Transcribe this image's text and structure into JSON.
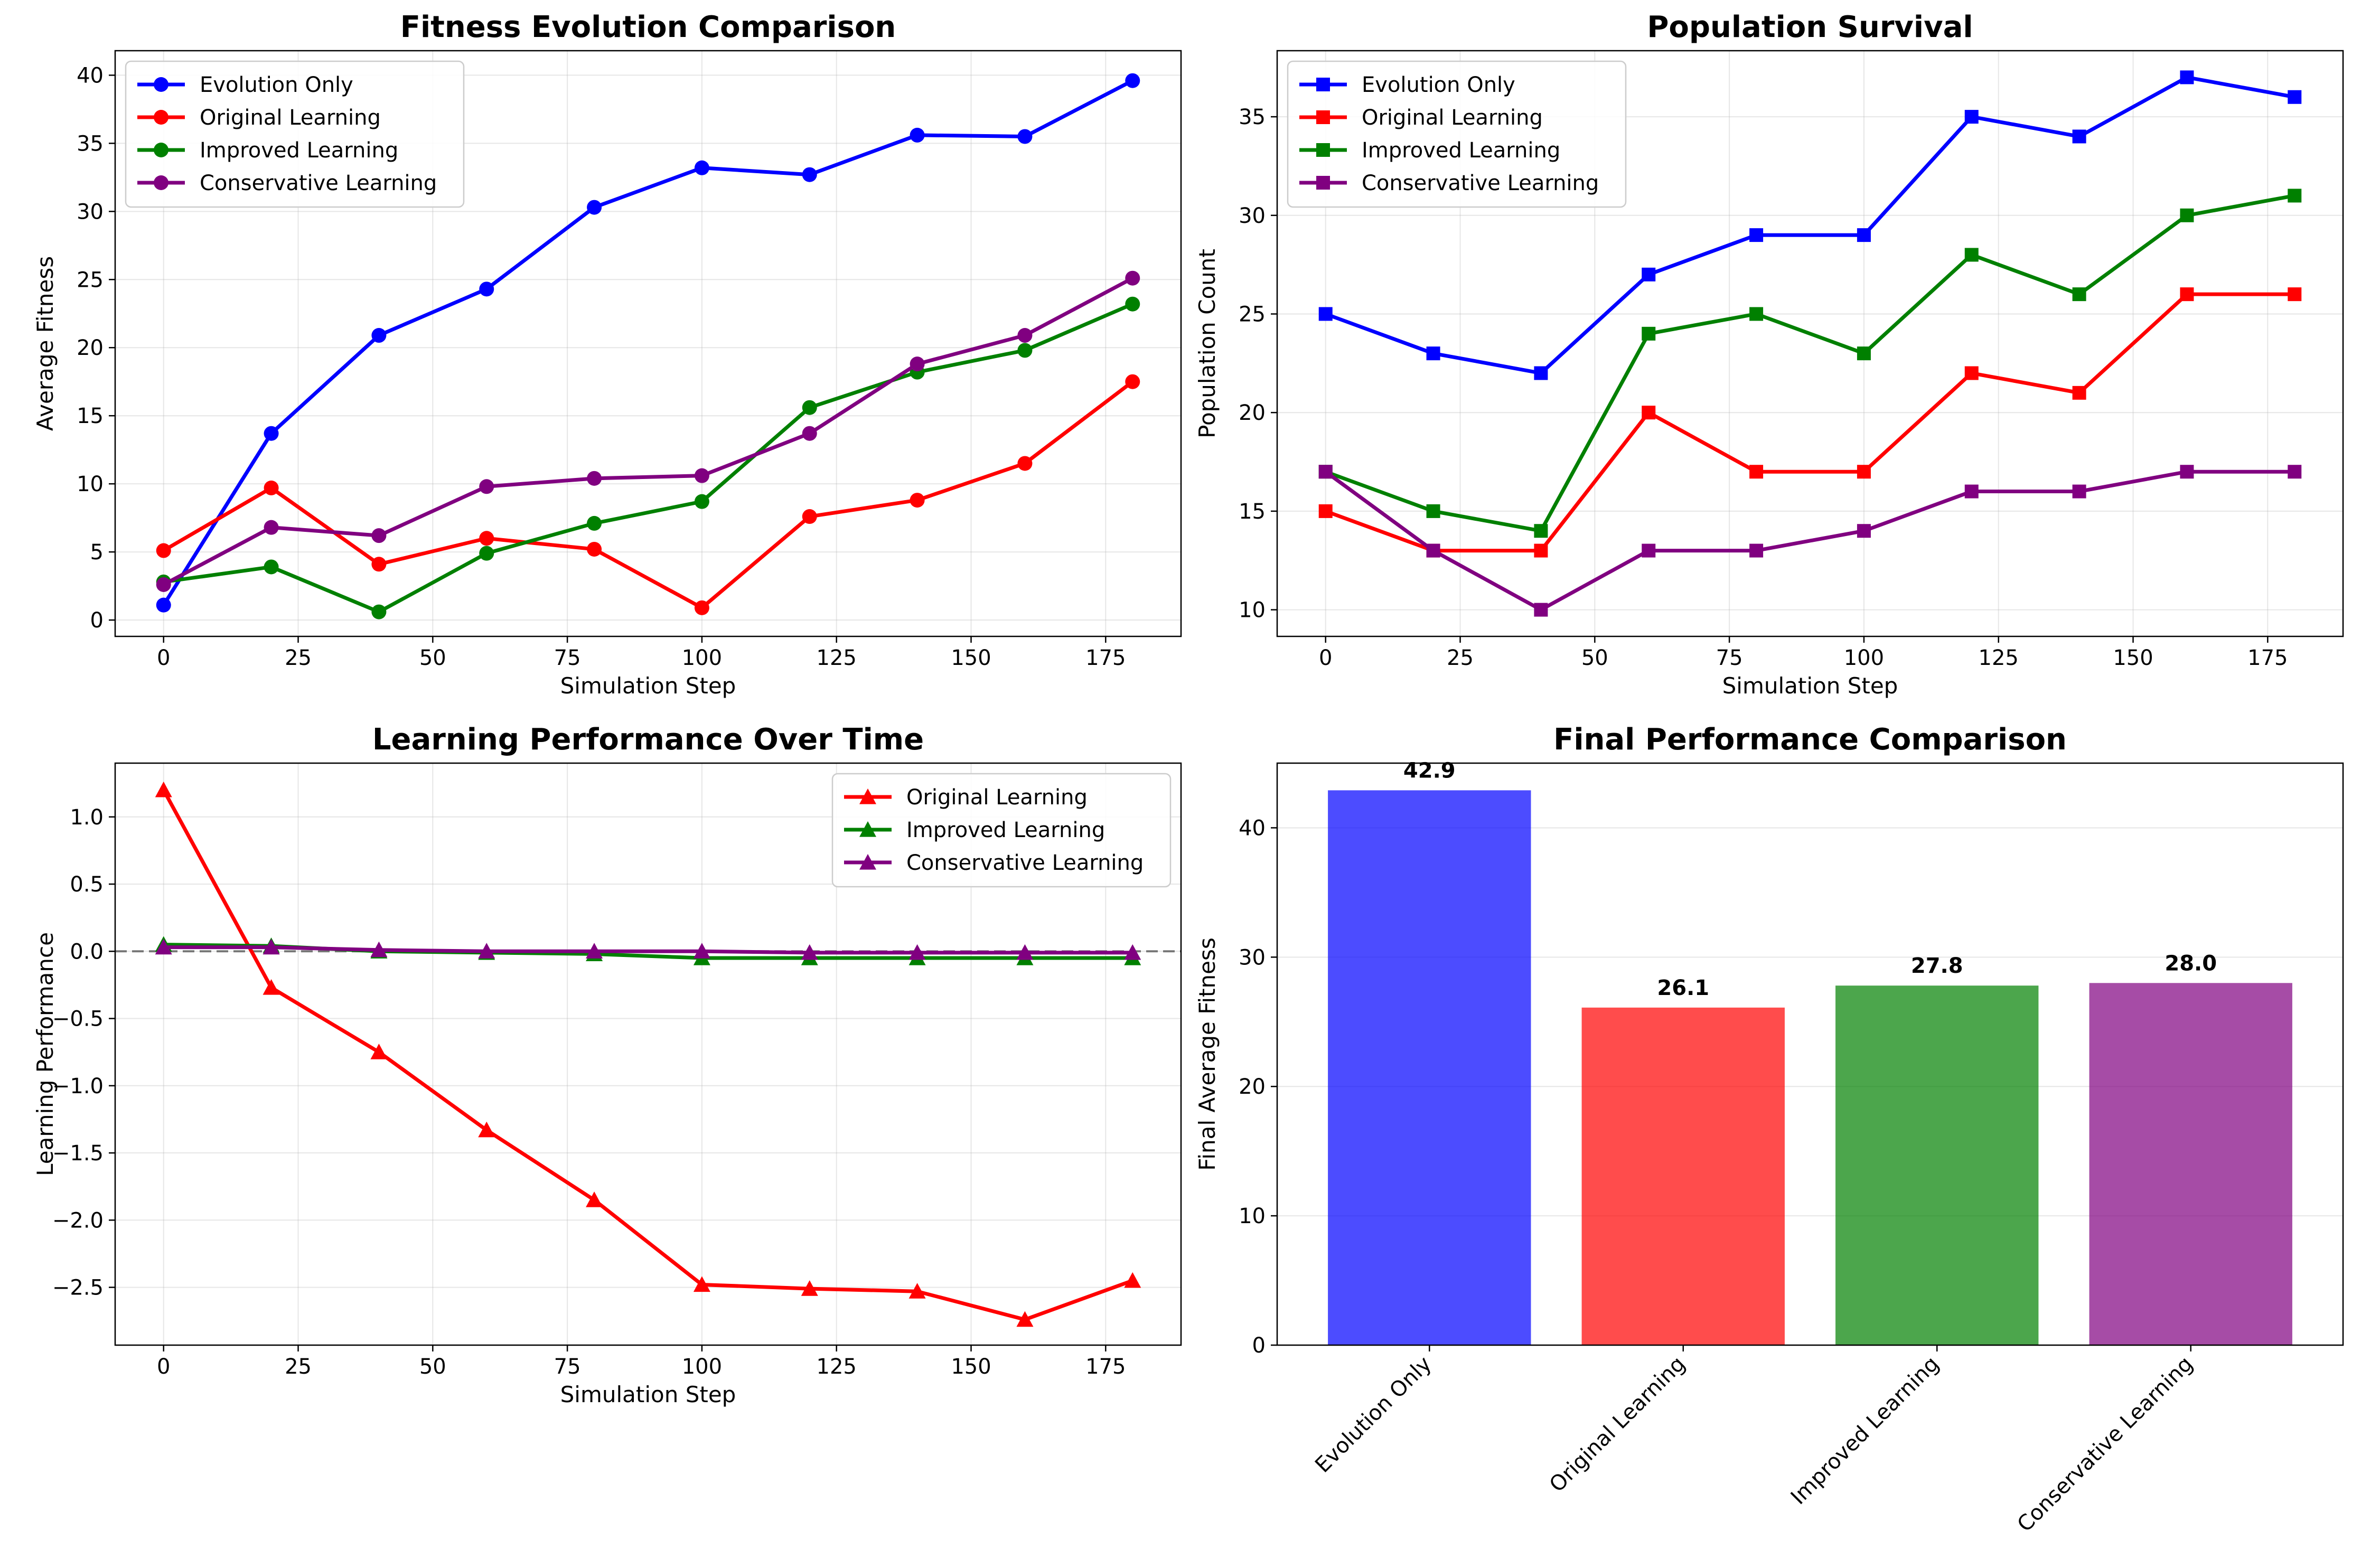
{
  "chart_data": [
    {
      "type": "line",
      "title": "Fitness Evolution Comparison",
      "xlabel": "Simulation Step",
      "ylabel": "Average Fitness",
      "xlim": [
        -9,
        189
      ],
      "ylim": [
        -1.2,
        41.8
      ],
      "xticks": [
        0,
        25,
        50,
        75,
        100,
        125,
        150,
        175
      ],
      "yticks": [
        0,
        5,
        10,
        15,
        20,
        25,
        30,
        35,
        40
      ],
      "grid": true,
      "legend": "top-left",
      "marker": "circle",
      "x": [
        0,
        20,
        40,
        60,
        80,
        100,
        120,
        140,
        160,
        180
      ],
      "series": [
        {
          "name": "Evolution Only",
          "color": "#0000ff",
          "values": [
            1.1,
            13.7,
            20.9,
            24.3,
            30.3,
            33.2,
            32.7,
            35.6,
            35.5,
            39.6
          ]
        },
        {
          "name": "Original Learning",
          "color": "#ff0000",
          "values": [
            5.1,
            9.7,
            4.1,
            6.0,
            5.2,
            0.9,
            7.6,
            8.8,
            11.5,
            17.5
          ]
        },
        {
          "name": "Improved Learning",
          "color": "#008000",
          "values": [
            2.8,
            3.9,
            0.6,
            4.9,
            7.1,
            8.7,
            15.6,
            18.2,
            19.8,
            23.2
          ]
        },
        {
          "name": "Conservative Learning",
          "color": "#800080",
          "values": [
            2.6,
            6.8,
            6.2,
            9.8,
            10.4,
            10.6,
            13.7,
            18.8,
            20.9,
            25.1
          ]
        }
      ]
    },
    {
      "type": "line",
      "title": "Population Survival",
      "xlabel": "Simulation Step",
      "ylabel": "Population Count",
      "xlim": [
        -9,
        189
      ],
      "ylim": [
        8.65,
        38.35
      ],
      "xticks": [
        0,
        25,
        50,
        75,
        100,
        125,
        150,
        175
      ],
      "yticks": [
        10,
        15,
        20,
        25,
        30,
        35
      ],
      "grid": true,
      "legend": "top-left",
      "marker": "square",
      "x": [
        0,
        20,
        40,
        60,
        80,
        100,
        120,
        140,
        160,
        180
      ],
      "series": [
        {
          "name": "Evolution Only",
          "color": "#0000ff",
          "values": [
            25,
            23,
            22,
            27,
            29,
            29,
            35,
            34,
            37,
            36
          ]
        },
        {
          "name": "Original Learning",
          "color": "#ff0000",
          "values": [
            15,
            13,
            13,
            20,
            17,
            17,
            22,
            21,
            26,
            26
          ]
        },
        {
          "name": "Improved Learning",
          "color": "#008000",
          "values": [
            17,
            15,
            14,
            24,
            25,
            23,
            28,
            26,
            30,
            31
          ]
        },
        {
          "name": "Conservative Learning",
          "color": "#800080",
          "values": [
            17,
            13,
            10,
            13,
            13,
            14,
            16,
            16,
            17,
            17
          ]
        }
      ]
    },
    {
      "type": "line",
      "title": "Learning Performance Over Time",
      "xlabel": "Simulation Step",
      "ylabel": "Learning Performance",
      "xlim": [
        -9,
        189
      ],
      "ylim": [
        -2.93,
        1.4
      ],
      "xticks": [
        0,
        25,
        50,
        75,
        100,
        125,
        150,
        175
      ],
      "yticks": [
        -2.5,
        -2.0,
        -1.5,
        -1.0,
        -0.5,
        0.0,
        0.5,
        1.0
      ],
      "ytick_labels": [
        "−2.5",
        "−2.0",
        "−1.5",
        "−1.0",
        "−0.5",
        "0.0",
        "0.5",
        "1.0"
      ],
      "grid": true,
      "legend": "top-right",
      "marker": "triangle",
      "reference_line_y": 0,
      "x": [
        0,
        20,
        40,
        60,
        80,
        100,
        120,
        140,
        160,
        180
      ],
      "series": [
        {
          "name": "Original Learning",
          "color": "#ff0000",
          "values": [
            1.2,
            -0.27,
            -0.75,
            -1.33,
            -1.85,
            -2.48,
            -2.51,
            -2.53,
            -2.74,
            -2.45
          ]
        },
        {
          "name": "Improved Learning",
          "color": "#008000",
          "values": [
            0.05,
            0.04,
            0.0,
            -0.01,
            -0.02,
            -0.05,
            -0.05,
            -0.05,
            -0.05,
            -0.05
          ]
        },
        {
          "name": "Conservative Learning",
          "color": "#800080",
          "values": [
            0.03,
            0.03,
            0.01,
            0.0,
            0.0,
            0.0,
            -0.01,
            -0.01,
            -0.01,
            -0.01
          ]
        }
      ]
    },
    {
      "type": "bar",
      "title": "Final Performance Comparison",
      "xlabel": "",
      "ylabel": "Final Average Fitness",
      "ylim": [
        0,
        45.0
      ],
      "yticks": [
        0,
        10,
        20,
        30,
        40
      ],
      "grid": true,
      "categories": [
        "Evolution Only",
        "Original Learning",
        "Improved Learning",
        "Conservative Learning"
      ],
      "values": [
        42.9,
        26.1,
        27.8,
        28.0
      ],
      "value_labels": [
        "42.9",
        "26.1",
        "27.8",
        "28.0"
      ],
      "colors": [
        "#0000ff",
        "#ff0000",
        "#008000",
        "#800080"
      ],
      "bar_alpha": 0.7
    }
  ]
}
